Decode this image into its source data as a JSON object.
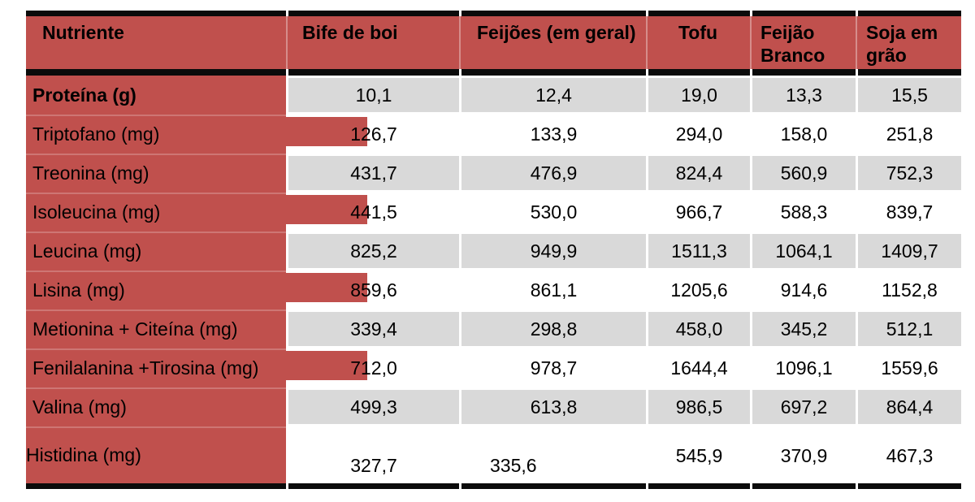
{
  "title": "Tabela de nutrientes",
  "colors": {
    "accent_red": "#c0504d",
    "red_separator_highlight": "#cd6a67",
    "shaded_band_gray": "#d9d9d9",
    "border_black": "#0b0b0b",
    "text": "#000000",
    "background": "#ffffff"
  },
  "table": {
    "header": [
      "Nutriente",
      "Bife de boi",
      "Feijões (em geral)",
      "Tofu",
      "Feijão Branco",
      "Soja em grão"
    ],
    "rows": [
      {
        "label": "Proteína (g)",
        "bold": true,
        "shaded": true,
        "red_extension": false,
        "tall": false,
        "values": [
          "10,1",
          "12,4",
          "19,0",
          "13,3",
          "15,5"
        ]
      },
      {
        "label": "Triptofano (mg)",
        "bold": false,
        "shaded": false,
        "red_extension": true,
        "tall": false,
        "values": [
          "126,7",
          "133,9",
          "294,0",
          "158,0",
          "251,8"
        ]
      },
      {
        "label": "Treonina (mg)",
        "bold": false,
        "shaded": true,
        "red_extension": false,
        "tall": false,
        "values": [
          "431,7",
          "476,9",
          "824,4",
          "560,9",
          "752,3"
        ]
      },
      {
        "label": "Isoleucina (mg)",
        "bold": false,
        "shaded": false,
        "red_extension": true,
        "tall": false,
        "values": [
          "441,5",
          "530,0",
          "966,7",
          "588,3",
          "839,7"
        ]
      },
      {
        "label": "Leucina (mg)",
        "bold": false,
        "shaded": true,
        "red_extension": false,
        "tall": false,
        "values": [
          "825,2",
          "949,9",
          "1511,3",
          "1064,1",
          "1409,7"
        ]
      },
      {
        "label": "Lisina (mg)",
        "bold": false,
        "shaded": false,
        "red_extension": true,
        "tall": false,
        "values": [
          "859,6",
          "861,1",
          "1205,6",
          "914,6",
          "1152,8"
        ]
      },
      {
        "label": "Metionina + Citeína (mg)",
        "bold": false,
        "shaded": true,
        "red_extension": false,
        "tall": false,
        "values": [
          "339,4",
          "298,8",
          "458,0",
          "345,2",
          "512,1"
        ]
      },
      {
        "label": "Fenilalanina +Tirosina (mg)",
        "bold": false,
        "shaded": false,
        "red_extension": true,
        "tall": false,
        "values": [
          "712,0",
          "978,7",
          "1644,4",
          "1096,1",
          "1559,6"
        ]
      },
      {
        "label": "Valina (mg)",
        "bold": false,
        "shaded": true,
        "red_extension": false,
        "tall": false,
        "values": [
          "499,3",
          "613,8",
          "986,5",
          "697,2",
          "864,4"
        ]
      },
      {
        "label": "Histidina (mg)",
        "bold": false,
        "shaded": false,
        "red_extension": false,
        "tall": true,
        "values": [
          "327,7",
          "335,6",
          "545,9",
          "370,9",
          "467,3"
        ]
      }
    ]
  },
  "chart_data": {
    "type": "table",
    "title": "",
    "columns": [
      "Nutriente",
      "Bife de boi",
      "Feijões (em geral)",
      "Tofu",
      "Feijão Branco",
      "Soja em grão"
    ],
    "rows": [
      [
        "Proteína (g)",
        10.1,
        12.4,
        19.0,
        13.3,
        15.5
      ],
      [
        "Triptofano (mg)",
        126.7,
        133.9,
        294.0,
        158.0,
        251.8
      ],
      [
        "Treonina (mg)",
        431.7,
        476.9,
        824.4,
        560.9,
        752.3
      ],
      [
        "Isoleucina (mg)",
        441.5,
        530.0,
        966.7,
        588.3,
        839.7
      ],
      [
        "Leucina (mg)",
        825.2,
        949.9,
        1511.3,
        1064.1,
        1409.7
      ],
      [
        "Lisina (mg)",
        859.6,
        861.1,
        1205.6,
        914.6,
        1152.8
      ],
      [
        "Metionina + Citeína (mg)",
        339.4,
        298.8,
        458.0,
        345.2,
        512.1
      ],
      [
        "Fenilalanina +Tirosina (mg)",
        712.0,
        978.7,
        1644.4,
        1096.1,
        1559.6
      ],
      [
        "Valina (mg)",
        499.3,
        613.8,
        986.5,
        697.2,
        864.4
      ],
      [
        "Histidina (mg)",
        327.7,
        335.6,
        545.9,
        370.9,
        467.3
      ]
    ],
    "notes": "decimal comma formatting; alternating gray shaded rows; red label column"
  }
}
